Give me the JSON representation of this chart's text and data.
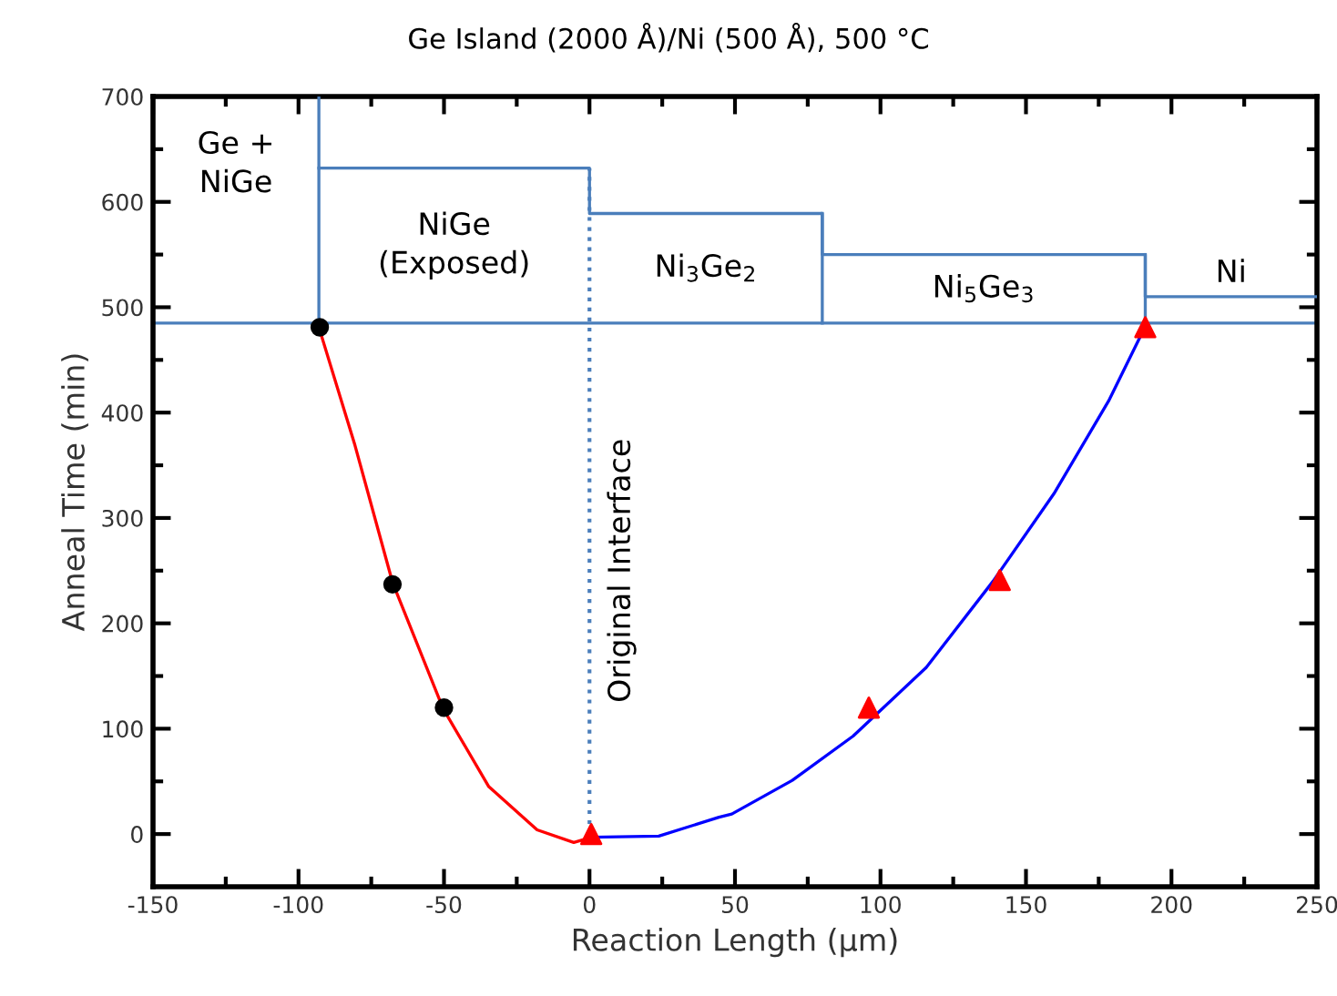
{
  "chart_data": {
    "type": "scatter",
    "title": "Ge Island (2000 Å)/Ni (500 Å), 500 °C",
    "xlabel": "Reaction Length (μm)",
    "ylabel": "Anneal Time (min)",
    "xlim": [
      -150,
      250
    ],
    "xticks": [
      -150,
      -100,
      -50,
      0,
      50,
      100,
      150,
      200,
      250
    ],
    "ylim": [
      -50,
      700
    ],
    "yticks": [
      0,
      100,
      200,
      300,
      400,
      500,
      600,
      700
    ],
    "grid": false,
    "series": [
      {
        "type": "line",
        "color": "#ff0000",
        "marker": "none",
        "line_style": "solid",
        "x": [
          -93,
          -80.6,
          -67.7,
          -50.3,
          -34.6,
          -18,
          -5.4,
          0.8
        ],
        "values": [
          481,
          369,
          239,
          119,
          45,
          4,
          -8,
          -3
        ]
      },
      {
        "type": "line",
        "color": "#0000ff",
        "marker": "none",
        "line_style": "solid",
        "x": [
          0.8,
          23.8,
          44.5,
          48.9,
          69.7,
          90.6,
          115.7,
          138.7,
          159.6,
          178.4,
          190.5
        ],
        "values": [
          -3,
          -2,
          16,
          19,
          51,
          93,
          158,
          240,
          323,
          411,
          479
        ]
      },
      {
        "color": "#000000",
        "marker": "circle",
        "x": [
          -92.7,
          -67.7,
          -50
        ],
        "values": [
          481,
          237,
          120
        ]
      },
      {
        "color": "#ff0000",
        "marker": "triangle",
        "x": [
          0.6,
          96,
          141,
          191
        ],
        "values": [
          0,
          120,
          241,
          481
        ]
      },
      {
        "type": "line",
        "color": "#4a7ebb",
        "marker": "none",
        "line_style": "solid",
        "x": [
          -93,
          -93
        ],
        "values": [
          485,
          700
        ]
      },
      {
        "type": "line",
        "color": "#4a7ebb",
        "marker": "none",
        "line_style": "solid",
        "x": [
          -93,
          0,
          0,
          80,
          80,
          191,
          191,
          250
        ],
        "values": [
          632,
          632,
          589,
          589,
          550,
          550,
          510,
          510
        ]
      },
      {
        "type": "line",
        "color": "#4a7ebb",
        "marker": "none",
        "line_style": "solid",
        "x": [
          80,
          80
        ],
        "values": [
          485,
          589
        ]
      },
      {
        "type": "line",
        "color": "#4a7ebb",
        "marker": "none",
        "line_style": "solid",
        "x": [
          191,
          191
        ],
        "values": [
          485,
          550
        ]
      }
    ],
    "ref_lines": [
      {
        "axis": "y",
        "value": 485,
        "color": "#4a7ebb",
        "line_style": "solid"
      },
      {
        "axis": "x",
        "value": 0,
        "label": "Original Interface",
        "color": "#4a7ebb",
        "line_style": "dotted"
      }
    ],
    "annotations": [
      "Ge +\nNiGe",
      "NiGe\n(Exposed)",
      "Ni$_{3}$Ge$_{2}$",
      "Ni$_{5}$Ge$_{3}$",
      "Ni"
    ]
  }
}
